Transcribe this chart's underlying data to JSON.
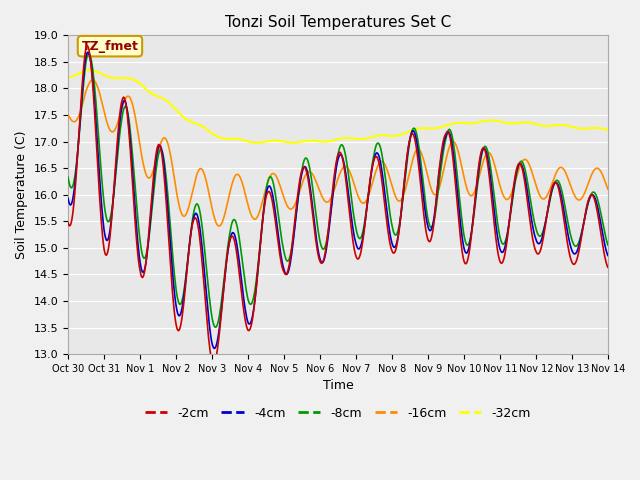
{
  "title": "Tonzi Soil Temperatures Set C",
  "xlabel": "Time",
  "ylabel": "Soil Temperature (C)",
  "ylim": [
    13.0,
    19.0
  ],
  "yticks": [
    13.0,
    13.5,
    14.0,
    14.5,
    15.0,
    15.5,
    16.0,
    16.5,
    17.0,
    17.5,
    18.0,
    18.5,
    19.0
  ],
  "xtick_labels": [
    "Oct 30",
    "Oct 31",
    "Nov 1",
    "Nov 2",
    "Nov 3",
    "Nov 4",
    "Nov 5",
    "Nov 6",
    "Nov 7",
    "Nov 8",
    "Nov 9",
    "Nov 10",
    "Nov 11",
    "Nov 12",
    "Nov 13",
    "Nov 14"
  ],
  "colors": {
    "-2cm": "#cc0000",
    "-4cm": "#0000cc",
    "-8cm": "#009900",
    "-16cm": "#ff8c00",
    "-32cm": "#ffff00"
  },
  "legend_label": "TZ_fmet",
  "legend_bg": "#ffffcc",
  "legend_border": "#cc9900",
  "fig_bg": "#f0f0f0",
  "plot_bg": "#e8e8e8",
  "grid_color": "#ffffff"
}
